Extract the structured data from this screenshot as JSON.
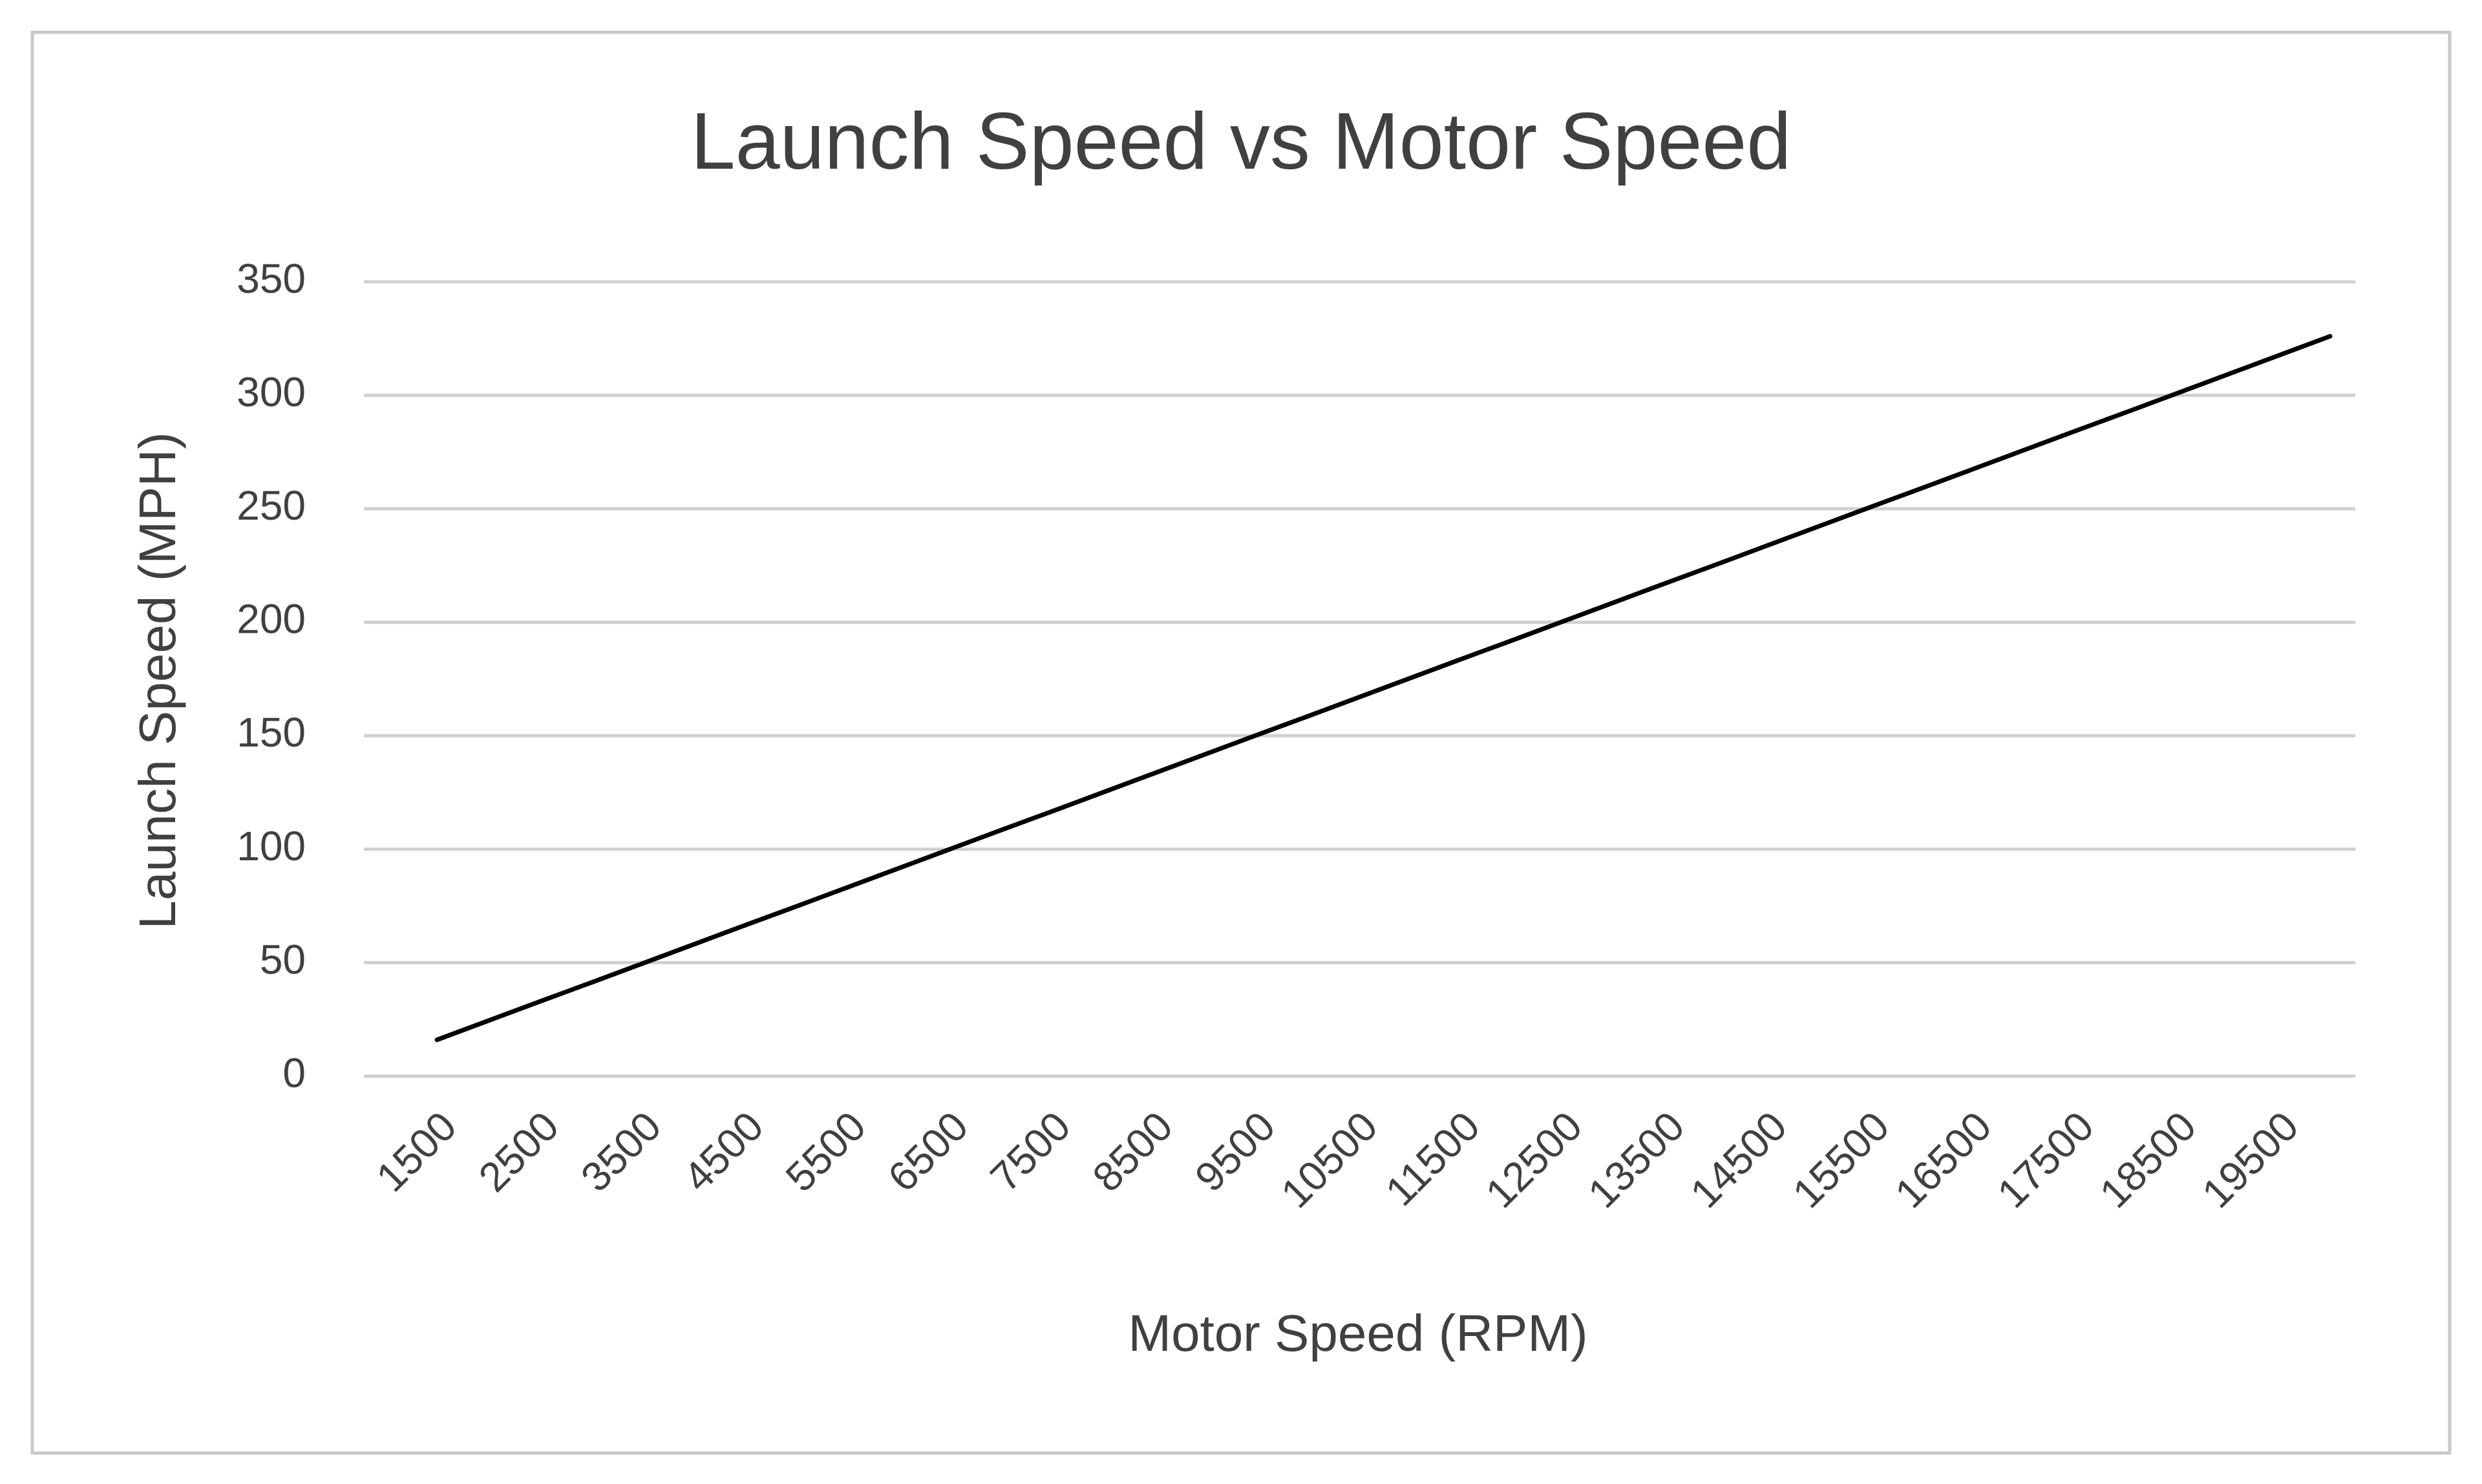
{
  "chart_data": {
    "type": "line",
    "title": "Launch Speed vs Motor Speed",
    "x_label": "Motor Speed (RPM)",
    "y_label": "Launch Speed (MPH)",
    "categories": [
      "1500",
      null,
      "2500",
      null,
      "3500",
      null,
      "4500",
      null,
      "5500",
      null,
      "6500",
      null,
      "7500",
      null,
      "8500",
      null,
      "9500",
      null,
      "10500",
      null,
      "11500",
      null,
      "12500",
      null,
      "13500",
      null,
      "14500",
      null,
      "15500",
      null,
      "16500",
      null,
      "17500",
      null,
      "18500",
      null,
      "19500",
      null
    ],
    "series": [
      {
        "name": "Launch Speed",
        "color": "#000000",
        "values": [
          16,
          24.4,
          32.8,
          41.1,
          49.5,
          57.9,
          66.3,
          74.6,
          83.0,
          91.4,
          99.8,
          108.2,
          116.5,
          124.9,
          133.3,
          141.7,
          150.1,
          158.4,
          166.8,
          175.2,
          183.6,
          191.9,
          200.3,
          208.7,
          217.1,
          225.4,
          233.8,
          242.2,
          250.6,
          258.9,
          267.3,
          275.7,
          284.1,
          292.4,
          300.8,
          309.2,
          317.6,
          326
        ]
      }
    ],
    "ylim": [
      0,
      350
    ],
    "yticks": [
      0,
      50,
      100,
      150,
      200,
      250,
      300,
      350
    ],
    "grid": true
  }
}
